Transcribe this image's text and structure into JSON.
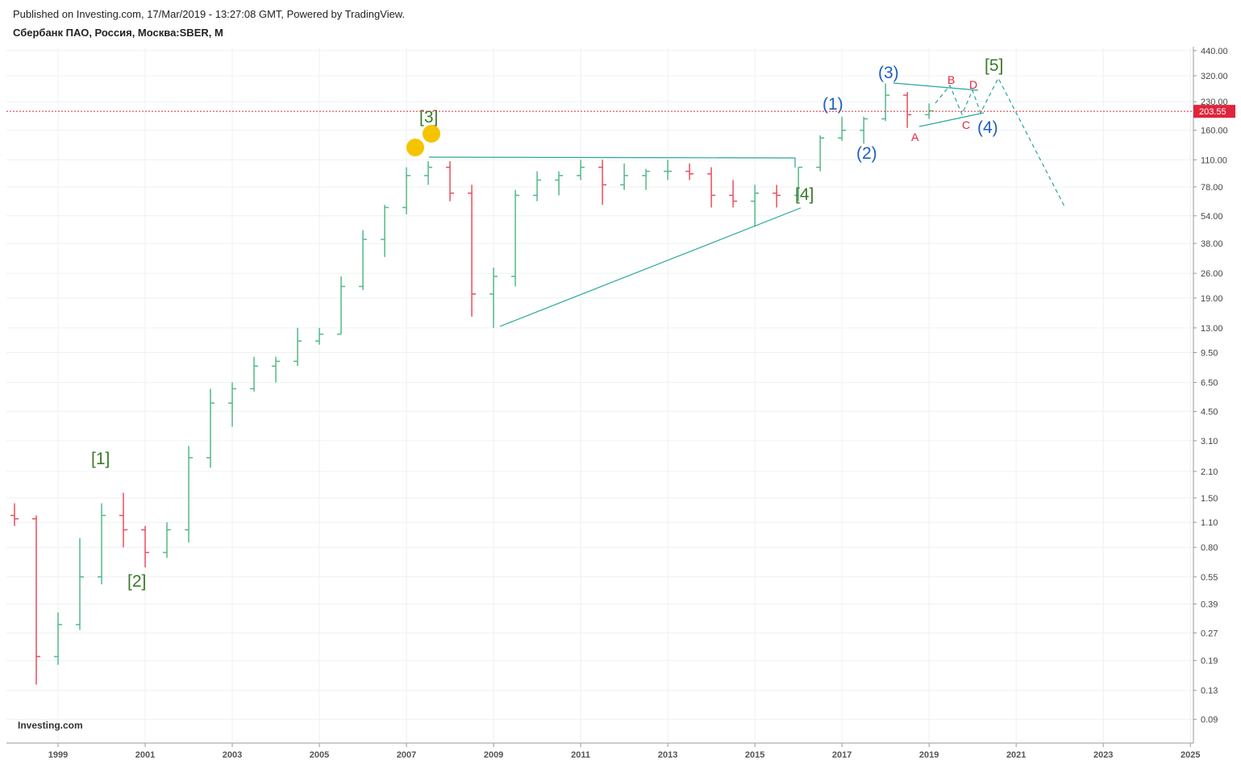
{
  "header": {
    "published": "Published on Investing.com, 17/Mar/2019 - 13:27:08 GMT, Powered by TradingView.",
    "symbol": "Сбербанк ПАО, Россия, Москва:SBER, M"
  },
  "logo": "Investing.com",
  "chart_data": {
    "type": "ohlc",
    "up_color": "#53b987",
    "down_color": "#eb4d5c",
    "log_scale": true,
    "grid": true,
    "x": [
      1998.0,
      1998.5,
      1999.0,
      1999.5,
      2000.0,
      2000.5,
      2001.0,
      2001.5,
      2002.0,
      2002.5,
      2003.0,
      2003.5,
      2004.0,
      2004.5,
      2005.0,
      2005.5,
      2006.0,
      2006.5,
      2007.0,
      2007.5,
      2008.0,
      2008.5,
      2009.0,
      2009.5,
      2010.0,
      2010.5,
      2011.0,
      2011.5,
      2012.0,
      2012.5,
      2013.0,
      2013.5,
      2014.0,
      2014.5,
      2015.0,
      2015.5,
      2016.0,
      2016.5,
      2017.0,
      2017.5,
      2018.0,
      2018.5,
      2019.0
    ],
    "open": [
      1.2,
      1.15,
      0.2,
      0.3,
      0.55,
      1.2,
      1.0,
      0.75,
      1.0,
      2.5,
      5.0,
      6.0,
      8.0,
      8.5,
      11,
      12,
      22,
      40,
      60,
      90,
      100,
      72,
      20,
      25,
      70,
      85,
      90,
      100,
      80,
      90,
      95,
      95,
      92,
      70,
      65,
      72,
      70,
      100,
      145,
      160,
      185,
      250,
      195
    ],
    "high": [
      1.4,
      1.2,
      0.35,
      0.9,
      1.4,
      1.6,
      1.05,
      1.1,
      2.9,
      6.0,
      6.5,
      9.0,
      9.0,
      13,
      13,
      25,
      45,
      62,
      100,
      108,
      108,
      80,
      28,
      75,
      95,
      95,
      110,
      110,
      105,
      98,
      110,
      105,
      100,
      85,
      80,
      80,
      100,
      150,
      190,
      190,
      290,
      260,
      225
    ],
    "low": [
      1.05,
      0.14,
      0.18,
      0.28,
      0.5,
      0.8,
      0.62,
      0.7,
      0.85,
      2.2,
      3.7,
      5.8,
      6.5,
      8,
      10.5,
      12,
      21,
      32,
      55,
      80,
      65,
      15,
      13,
      22,
      65,
      70,
      85,
      62,
      75,
      75,
      85,
      85,
      60,
      60,
      47,
      60,
      65,
      95,
      140,
      135,
      180,
      165,
      185
    ],
    "close": [
      1.15,
      0.2,
      0.3,
      0.55,
      1.2,
      1.0,
      0.75,
      1.0,
      2.5,
      5.0,
      6.0,
      8.0,
      8.5,
      11,
      12,
      22,
      40,
      60,
      90,
      100,
      72,
      20,
      25,
      70,
      85,
      90,
      100,
      80,
      90,
      95,
      95,
      92,
      70,
      65,
      72,
      70,
      100,
      145,
      160,
      185,
      250,
      195,
      205
    ],
    "last_price": 203.55,
    "xlim": [
      1997.815,
      2025.07
    ],
    "xticks": [
      1999,
      2001,
      2003,
      2005,
      2007,
      2009,
      2011,
      2013,
      2015,
      2017,
      2019,
      2021,
      2023,
      2025
    ],
    "ylim": [
      0.068,
      453
    ],
    "yticks": [
      {
        "value": 440,
        "label": "440.00"
      },
      {
        "value": 320,
        "label": "320.00"
      },
      {
        "value": 230,
        "label": "230.00"
      },
      {
        "value": 160,
        "label": "160.00"
      },
      {
        "value": 110,
        "label": "110.00"
      },
      {
        "value": 78,
        "label": "78.00"
      },
      {
        "value": 54,
        "label": "54.00"
      },
      {
        "value": 38,
        "label": "38.00"
      },
      {
        "value": 26,
        "label": "26.00"
      },
      {
        "value": 19,
        "label": "19.00"
      },
      {
        "value": 13,
        "label": "13.00"
      },
      {
        "value": 9.5,
        "label": "9.50"
      },
      {
        "value": 6.5,
        "label": "6.50"
      },
      {
        "value": 4.5,
        "label": "4.50"
      },
      {
        "value": 3.1,
        "label": "3.10"
      },
      {
        "value": 2.1,
        "label": "2.10"
      },
      {
        "value": 1.5,
        "label": "1.50"
      },
      {
        "value": 1.1,
        "label": "1.10"
      },
      {
        "value": 0.8,
        "label": "0.80"
      },
      {
        "value": 0.55,
        "label": "0.55"
      },
      {
        "value": 0.39,
        "label": "0.39"
      },
      {
        "value": 0.27,
        "label": "0.27"
      },
      {
        "value": 0.19,
        "label": "0.19"
      },
      {
        "value": 0.13,
        "label": "0.13"
      },
      {
        "value": 0.09,
        "label": "0.09"
      }
    ],
    "annotations": [
      "[1]",
      "[2]",
      "[3]",
      "[4]",
      "[5]",
      "(1)",
      "(2)",
      "(3)",
      "(4)",
      "A",
      "B",
      "C",
      "D"
    ]
  }
}
